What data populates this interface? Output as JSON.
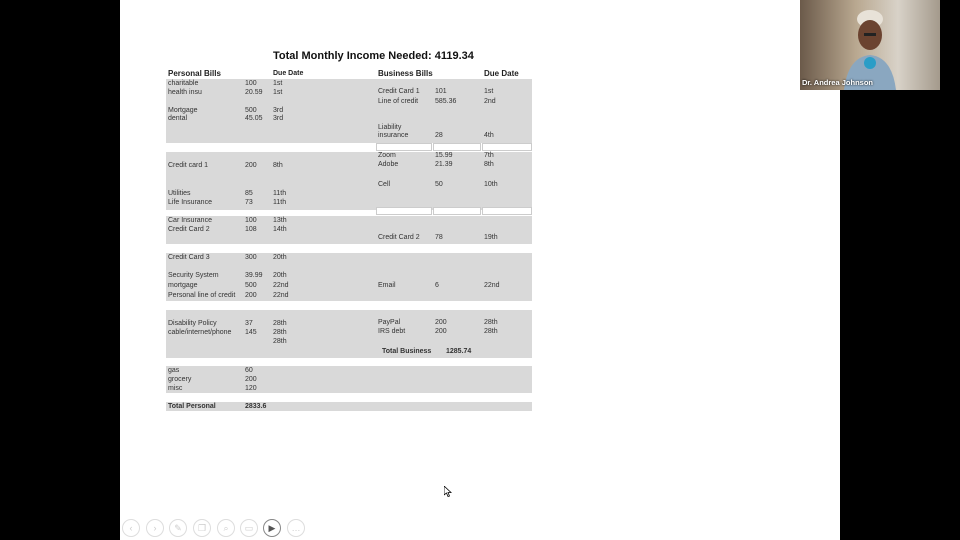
{
  "title": "Total Monthly Income Needed: 4119.34",
  "personal": {
    "header": "Personal Bills",
    "due_header": "Due Date",
    "rows": [
      {
        "name": "charitable",
        "amount": "100",
        "due": "1st"
      },
      {
        "name": "health insu",
        "amount": "20.59",
        "due": "1st"
      },
      {
        "name": "Mortgage",
        "amount": "500",
        "due": "3rd"
      },
      {
        "name": "dental",
        "amount": "45.05",
        "due": "3rd"
      },
      {
        "name": "Credit card 1",
        "amount": "200",
        "due": "8th"
      },
      {
        "name": "Utilities",
        "amount": "85",
        "due": "11th"
      },
      {
        "name": "Life Insurance",
        "amount": "73",
        "due": "11th"
      },
      {
        "name": "Car Insurance",
        "amount": "100",
        "due": "13th"
      },
      {
        "name": "Credit Card 2",
        "amount": "108",
        "due": "14th"
      },
      {
        "name": "Credit Card 3",
        "amount": "300",
        "due": "20th"
      },
      {
        "name": "Security System",
        "amount": "39.99",
        "due": "20th"
      },
      {
        "name": "mortgage",
        "amount": "500",
        "due": "22nd"
      },
      {
        "name": "Personal line of credit",
        "amount": "200",
        "due": "22nd"
      },
      {
        "name": "Disability Policy",
        "amount": "37",
        "due": "28th"
      },
      {
        "name": "cable/internet/phone",
        "amount": "145",
        "due": "28th"
      },
      {
        "name": "",
        "amount": "",
        "due": "28th"
      },
      {
        "name": "gas",
        "amount": "60",
        "due": ""
      },
      {
        "name": "grocery",
        "amount": "200",
        "due": ""
      },
      {
        "name": "misc",
        "amount": "120",
        "due": ""
      }
    ],
    "total_label": "Total Personal",
    "total": "2833.6"
  },
  "business": {
    "header": "Business Bills",
    "due_header": "Due Date",
    "rows": [
      {
        "name": "Credit Card 1",
        "amount": "101",
        "due": "1st"
      },
      {
        "name": "Line of credit",
        "amount": "585.36",
        "due": "2nd"
      },
      {
        "name": "Liability",
        "amount": "",
        "due": ""
      },
      {
        "name": "insurance",
        "amount": "28",
        "due": "4th"
      },
      {
        "name": "Zoom",
        "amount": "15.99",
        "due": "7th"
      },
      {
        "name": "Adobe",
        "amount": "21.39",
        "due": "8th"
      },
      {
        "name": "Cell",
        "amount": "50",
        "due": "10th"
      },
      {
        "name": "Credit Card 2",
        "amount": "78",
        "due": "19th"
      },
      {
        "name": "Email",
        "amount": "6",
        "due": "22nd"
      },
      {
        "name": "PayPal",
        "amount": "200",
        "due": "28th"
      },
      {
        "name": "IRS debt",
        "amount": "200",
        "due": "28th"
      }
    ],
    "total_label": "Total Business",
    "total": "1285.74"
  },
  "video": {
    "participant": "Dr. Andrea Johnson"
  },
  "toolbar": [
    "previous",
    "next",
    "pen",
    "copy",
    "zoom",
    "screen",
    "video",
    "more"
  ]
}
